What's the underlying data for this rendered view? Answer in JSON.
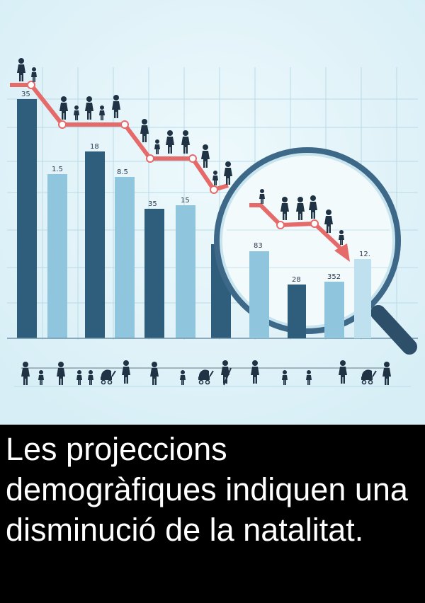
{
  "caption": "Les projeccions demogràfiques indiquen una disminució de la natalitat.",
  "colors": {
    "background": "#e3f3f9",
    "dark_bar": "#2f5d7c",
    "light_bar": "#8fc6de",
    "trend_line": "#e56b6b",
    "people": "#1f3345",
    "magnifier_ring": "#3d6888",
    "caption_bg": "#000000",
    "caption_text": "#ffffff"
  },
  "bar_labels": [
    "35",
    "1.5",
    "18",
    "8.5",
    "35",
    "15",
    "83",
    "28",
    "352",
    "12."
  ],
  "icons": [
    "people-figures-icon",
    "family-icon",
    "stroller-icon",
    "magnifier-icon",
    "down-arrow-icon"
  ]
}
